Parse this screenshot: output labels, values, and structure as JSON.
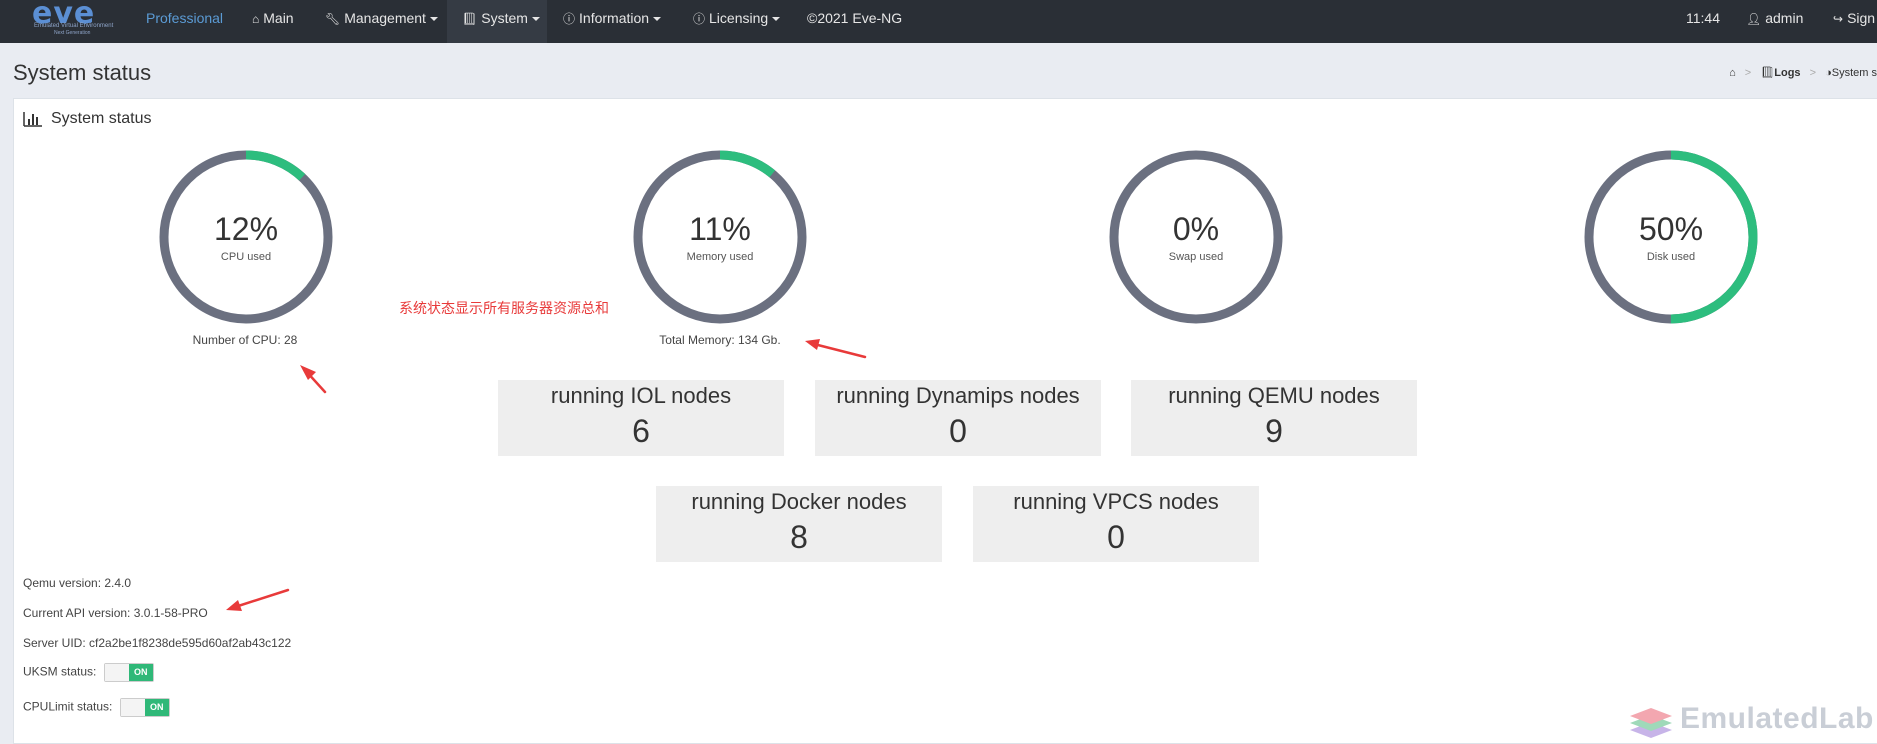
{
  "navbar": {
    "logo_text": "eve",
    "logo_sub": "Emulated Virtual Environment",
    "logo_sub2": "Next Generation",
    "edition": "Professional",
    "items": [
      {
        "label": "Main",
        "icon": "home-icon"
      },
      {
        "label": "Management",
        "icon": "wrench-icon"
      },
      {
        "label": "System",
        "icon": "book-icon"
      },
      {
        "label": "Information",
        "icon": "info-icon"
      },
      {
        "label": "Licensing",
        "icon": "info-icon"
      }
    ],
    "copyright": "©2021 Eve-NG",
    "time": "11:44",
    "user": "admin",
    "sign_out": "Sign"
  },
  "header": {
    "title": "System status",
    "breadcrumb": {
      "logs": "Logs",
      "current": "System s"
    }
  },
  "panel": {
    "title": "System status"
  },
  "gauges": [
    {
      "value": 12,
      "value_text": "12%",
      "label": "CPU used",
      "caption": "Number of CPU: 28"
    },
    {
      "value": 11,
      "value_text": "11%",
      "label": "Memory used",
      "caption": "Total Memory: 134 Gb."
    },
    {
      "value": 0,
      "value_text": "0%",
      "label": "Swap used",
      "caption": ""
    },
    {
      "value": 50,
      "value_text": "50%",
      "label": "Disk used",
      "caption": ""
    }
  ],
  "colors": {
    "gauge_track": "#6b7080",
    "gauge_fill": "#2dbd7e",
    "annotation": "#e83a3a"
  },
  "nodes": [
    {
      "title": "running IOL nodes",
      "count": "6"
    },
    {
      "title": "running Dynamips nodes",
      "count": "0"
    },
    {
      "title": "running QEMU nodes",
      "count": "9"
    },
    {
      "title": "running Docker nodes",
      "count": "8"
    },
    {
      "title": "running VPCS nodes",
      "count": "0"
    }
  ],
  "info": {
    "qemu_version": "Qemu version: 2.4.0",
    "api_version": "Current API version: 3.0.1-58-PRO",
    "server_uid": "Server UID: cf2a2be1f8238de595d60af2ab43c122",
    "uksm_label": "UKSM status:",
    "uksm_state": "ON",
    "cpulimit_label": "CPULimit status:",
    "cpulimit_state": "ON"
  },
  "annotation": {
    "text": "系统状态显示所有服务器资源总和"
  },
  "watermark": {
    "text": "EmulatedLab"
  }
}
